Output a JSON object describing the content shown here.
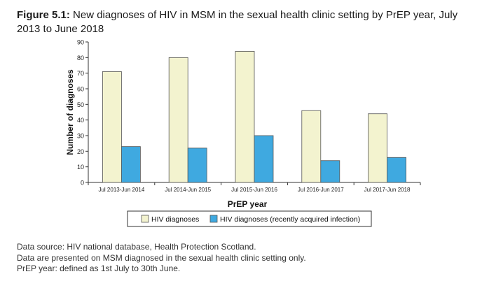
{
  "figure": {
    "label": "Figure 5.1:",
    "title": "New diagnoses of HIV in MSM in the sexual health clinic setting by PrEP year, July 2013 to June 2018"
  },
  "chart_data": {
    "type": "bar",
    "xlabel": "PrEP year",
    "ylabel": "Number of diagnoses",
    "ylim": [
      0,
      90
    ],
    "yticks": [
      0,
      10,
      20,
      30,
      40,
      50,
      60,
      70,
      80,
      90
    ],
    "categories": [
      "Jul 2013-Jun 2014",
      "Jul 2014-Jun 2015",
      "Jul 2015-Jun 2016",
      "Jul 2016-Jun 2017",
      "Jul 2017-Jun 2018"
    ],
    "series": [
      {
        "name": "HIV diagnoses",
        "color": "#f3f3cf",
        "values": [
          71,
          80,
          84,
          46,
          44
        ]
      },
      {
        "name": "HIV diagnoses (recently acquired infection)",
        "color": "#3fa9e0",
        "values": [
          23,
          22,
          30,
          14,
          16
        ]
      }
    ],
    "legend_position": "bottom"
  },
  "footnotes": [
    "Data source: HIV national database, Health Protection Scotland.",
    "Data are presented on MSM diagnosed in the sexual health clinic setting only.",
    "PrEP year: defined as 1st July to 30th June."
  ]
}
